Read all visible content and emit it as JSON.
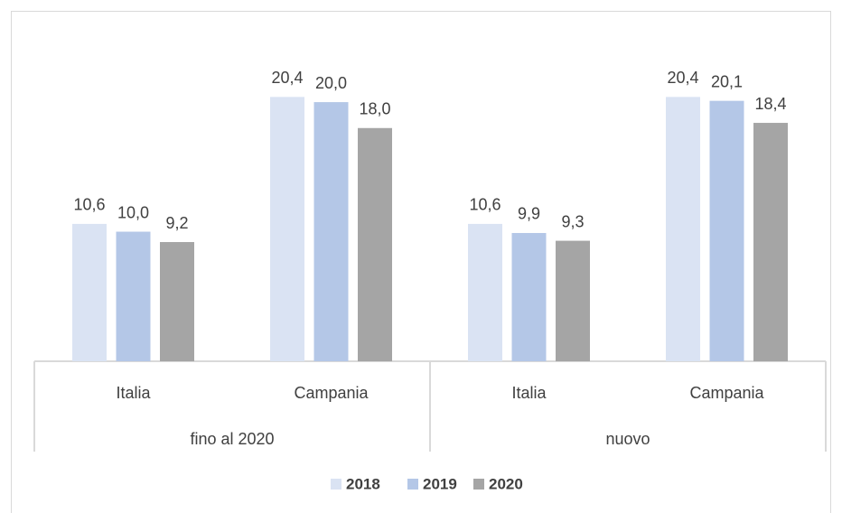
{
  "chart_data": {
    "type": "bar",
    "categories": [
      "Italia",
      "Campania",
      "Italia",
      "Campania"
    ],
    "category_groups": [
      "fino al 2020",
      "nuovo"
    ],
    "series": [
      {
        "name": "2018",
        "color": "#dae3f3",
        "values": [
          10.6,
          20.4,
          10.6,
          20.4
        ],
        "value_labels": [
          "10,6",
          "20,4",
          "10,6",
          "20,4"
        ]
      },
      {
        "name": "2019",
        "color": "#b4c7e7",
        "values": [
          10.0,
          20.0,
          9.9,
          20.1
        ],
        "value_labels": [
          "10,0",
          "20,0",
          "9,9",
          "20,1"
        ]
      },
      {
        "name": "2020",
        "color": "#a5a5a5",
        "values": [
          9.2,
          18.0,
          9.3,
          18.4
        ],
        "value_labels": [
          "9,2",
          "18,0",
          "9,3",
          "18,4"
        ]
      }
    ],
    "ylim": [
      0,
      23.7
    ],
    "legend": "bottom"
  }
}
